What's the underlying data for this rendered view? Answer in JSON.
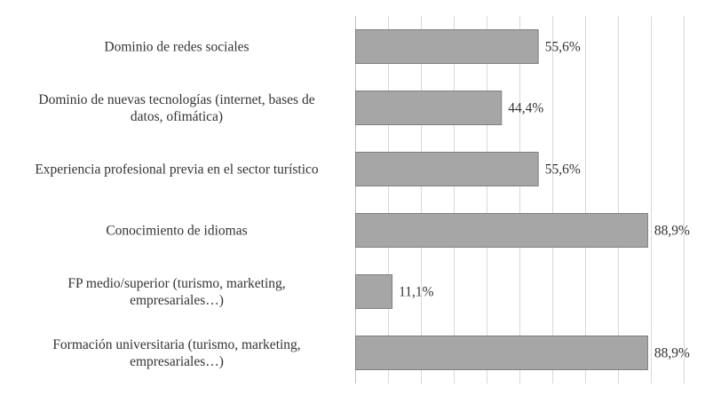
{
  "chart_data": {
    "type": "bar",
    "orientation": "horizontal",
    "categories": [
      [
        "Dominio de redes sociales"
      ],
      [
        "Dominio de nuevas tecnologías (internet, bases de",
        "datos, ofimática)"
      ],
      [
        "Experiencia profesional previa en el sector turístico"
      ],
      [
        "Conocimiento de idiomas"
      ],
      [
        "FP medio/superior (turismo, marketing,",
        "empresariales…)"
      ],
      [
        "Formación universitaria  (turismo, marketing,",
        "empresariales…)"
      ]
    ],
    "values": [
      55.6,
      44.4,
      55.6,
      88.9,
      11.1,
      88.9
    ],
    "data_labels": [
      "55,6%",
      "44,4%",
      "55,6%",
      "88,9%",
      "11,1%",
      "88,9%"
    ],
    "xlim": [
      0,
      100
    ],
    "grid": true,
    "colors": {
      "bar": "#a6a6a6",
      "bar_edge": "#7f7f7f",
      "grid": "#d9d9d9",
      "text": "#333333"
    }
  }
}
